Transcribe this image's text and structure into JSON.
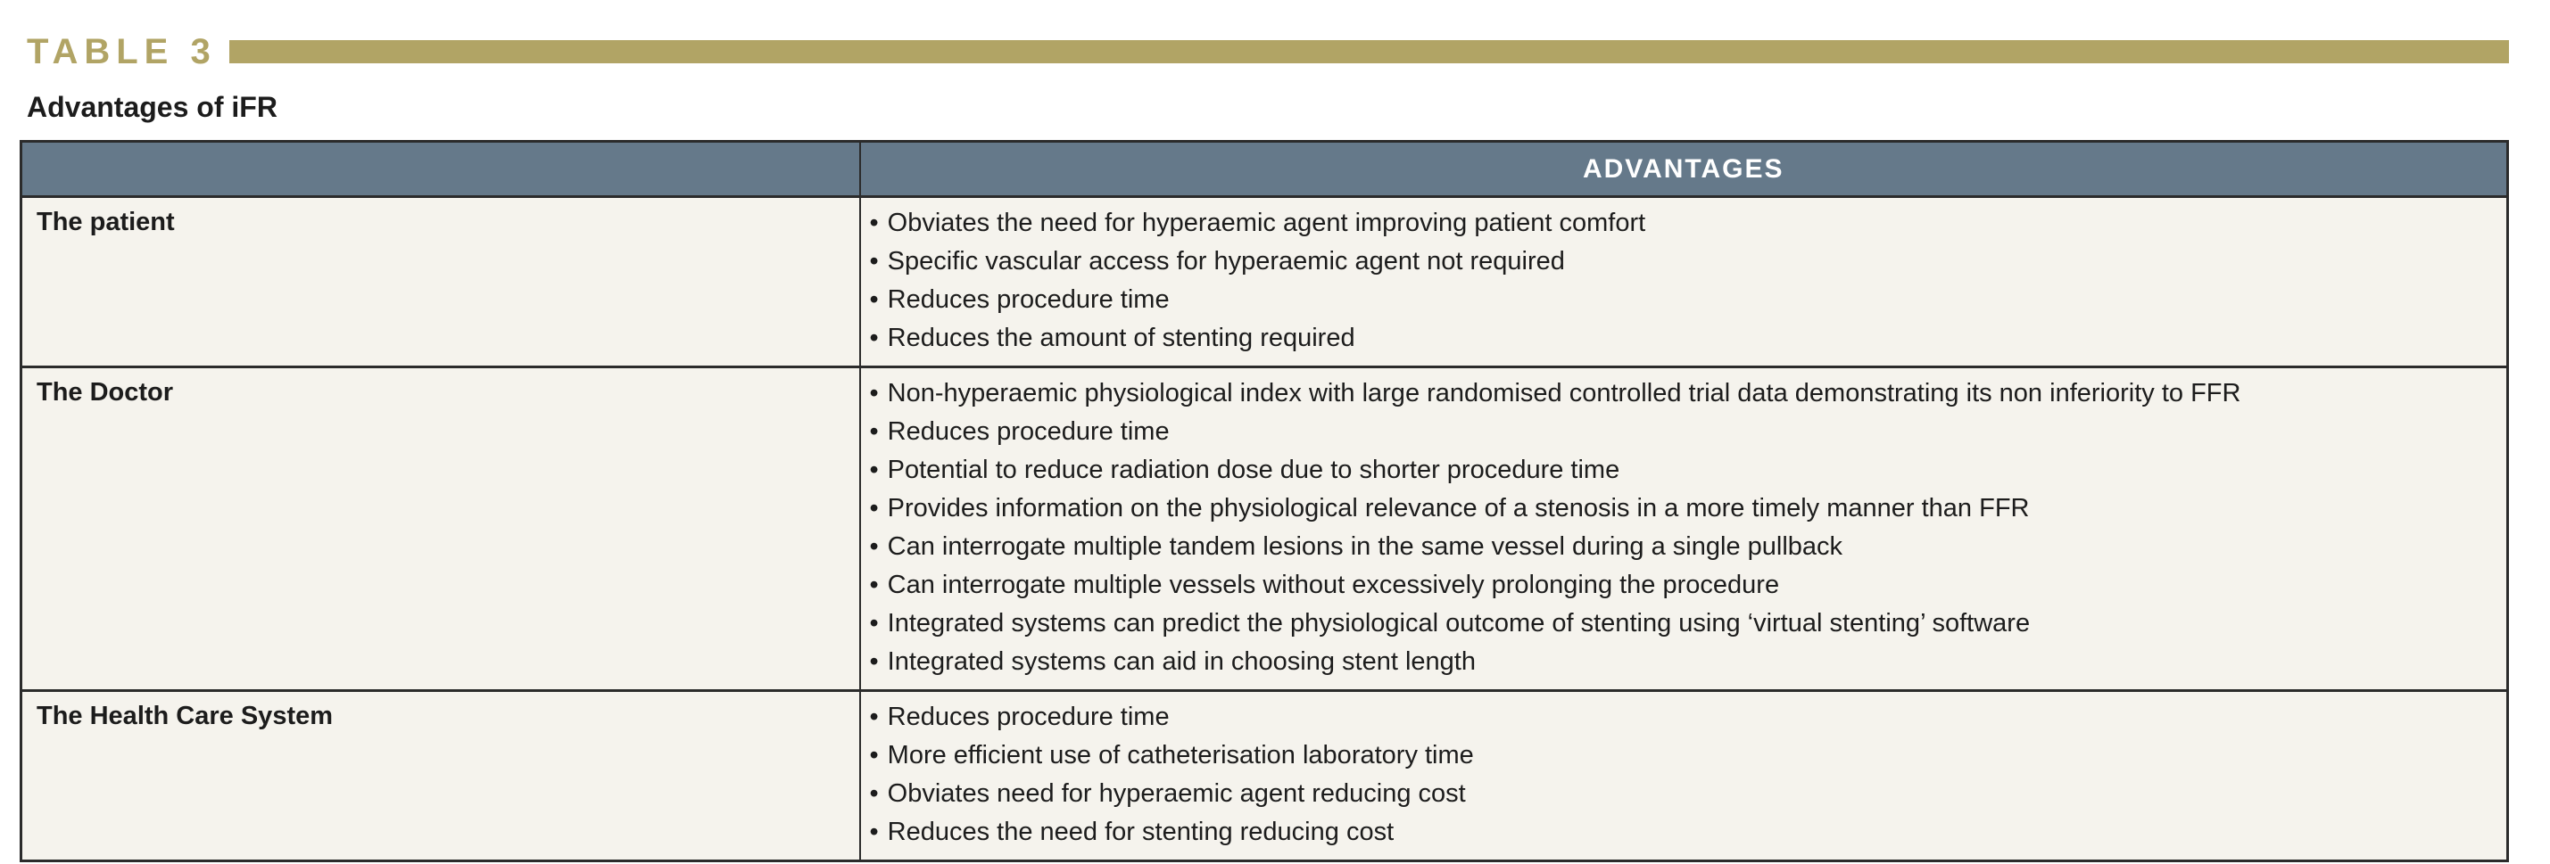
{
  "heading": {
    "table_label": "TABLE 3",
    "subtitle": "Advantages of iFR"
  },
  "colors": {
    "gold": "#b1a465",
    "header_bg": "#65798a",
    "row_bg": "#f5f3ed",
    "border": "#2b2b2b",
    "header_text": "#ffffff",
    "body_text": "#1c1c1c"
  },
  "table": {
    "header": {
      "stakeholder": "",
      "advantages": "ADVANTAGES"
    },
    "rows": [
      {
        "label": "The patient",
        "items": [
          "Obviates the need for hyperaemic agent improving patient comfort",
          "Specific vascular access for hyperaemic agent not required",
          "Reduces procedure time",
          "Reduces the amount of stenting required"
        ]
      },
      {
        "label": "The Doctor",
        "items": [
          "Non-hyperaemic physiological index with large randomised controlled trial data demonstrating its non inferiority to FFR",
          "Reduces procedure time",
          "Potential to reduce radiation dose due to shorter procedure time",
          "Provides information on the physiological relevance of a stenosis in a more timely manner than FFR",
          "Can interrogate multiple tandem lesions in the same vessel during a single pullback",
          "Can interrogate multiple vessels without excessively prolonging the procedure",
          "Integrated systems can predict the physiological outcome of stenting using ‘virtual stenting’ software",
          "Integrated systems can aid in choosing stent length"
        ]
      },
      {
        "label": "The Health Care System",
        "items": [
          "Reduces procedure time",
          "More efficient use of catheterisation laboratory time",
          "Obviates need for hyperaemic agent reducing cost",
          "Reduces the need for stenting reducing cost"
        ]
      }
    ]
  }
}
